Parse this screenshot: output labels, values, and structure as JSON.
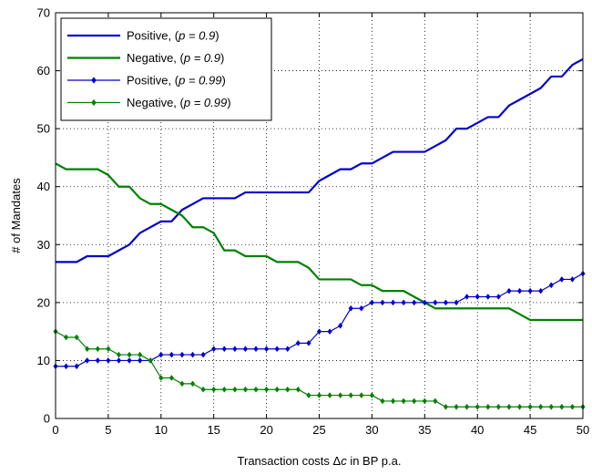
{
  "chart_data": {
    "type": "line",
    "xlabel": "Transaction costs Δc in BP p.a.",
    "ylabel": "# of Mandates",
    "xlim": [
      0,
      50
    ],
    "ylim": [
      0,
      70
    ],
    "xticks": [
      "0",
      "5",
      "10",
      "15",
      "20",
      "25",
      "30",
      "35",
      "40",
      "45",
      "50"
    ],
    "yticks": [
      "0",
      "10",
      "20",
      "30",
      "40",
      "50",
      "60",
      "70"
    ],
    "grid": true,
    "legend_position": "top-left",
    "x": [
      0,
      1,
      2,
      3,
      4,
      5,
      6,
      7,
      8,
      9,
      10,
      11,
      12,
      13,
      14,
      15,
      16,
      17,
      18,
      19,
      20,
      21,
      22,
      23,
      24,
      25,
      26,
      27,
      28,
      29,
      30,
      31,
      32,
      33,
      34,
      35,
      36,
      37,
      38,
      39,
      40,
      41,
      42,
      43,
      44,
      45,
      46,
      47,
      48,
      49,
      50
    ],
    "series": [
      {
        "name_text": "Positive, ",
        "name_p": "(p = 0.9)",
        "color": "#0000cc",
        "marker": false,
        "values": [
          27,
          27,
          27,
          28,
          28,
          28,
          29,
          30,
          32,
          33,
          34,
          34,
          36,
          37,
          38,
          38,
          38,
          38,
          39,
          39,
          39,
          39,
          39,
          39,
          39,
          41,
          42,
          43,
          43,
          44,
          44,
          45,
          46,
          46,
          46,
          46,
          47,
          48,
          50,
          50,
          51,
          52,
          52,
          54,
          55,
          56,
          57,
          59,
          59,
          61,
          62
        ]
      },
      {
        "name_text": "Negative, ",
        "name_p": "(p = 0.9)",
        "color": "#008000",
        "marker": false,
        "values": [
          44,
          43,
          43,
          43,
          43,
          42,
          40,
          40,
          38,
          37,
          37,
          36,
          35,
          33,
          33,
          32,
          29,
          29,
          28,
          28,
          28,
          27,
          27,
          27,
          26,
          24,
          24,
          24,
          24,
          23,
          23,
          22,
          22,
          22,
          21,
          20,
          19,
          19,
          19,
          19,
          19,
          19,
          19,
          19,
          18,
          17,
          17,
          17,
          17,
          17,
          17
        ]
      },
      {
        "name_text": "Positive, ",
        "name_p": "(p = 0.99)",
        "color": "#0000cc",
        "marker": true,
        "values": [
          9,
          9,
          9,
          10,
          10,
          10,
          10,
          10,
          10,
          10,
          11,
          11,
          11,
          11,
          11,
          12,
          12,
          12,
          12,
          12,
          12,
          12,
          12,
          13,
          13,
          15,
          15,
          16,
          19,
          19,
          20,
          20,
          20,
          20,
          20,
          20,
          20,
          20,
          20,
          21,
          21,
          21,
          21,
          22,
          22,
          22,
          22,
          23,
          24,
          24,
          25
        ]
      },
      {
        "name_text": "Negative, ",
        "name_p": "(p = 0.99)",
        "color": "#008000",
        "marker": true,
        "values": [
          15,
          14,
          14,
          12,
          12,
          12,
          11,
          11,
          11,
          10,
          7,
          7,
          6,
          6,
          5,
          5,
          5,
          5,
          5,
          5,
          5,
          5,
          5,
          5,
          4,
          4,
          4,
          4,
          4,
          4,
          4,
          3,
          3,
          3,
          3,
          3,
          3,
          2,
          2,
          2,
          2,
          2,
          2,
          2,
          2,
          2,
          2,
          2,
          2,
          2,
          2
        ]
      }
    ]
  }
}
